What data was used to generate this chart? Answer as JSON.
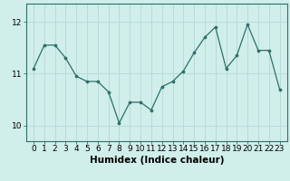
{
  "x": [
    0,
    1,
    2,
    3,
    4,
    5,
    6,
    7,
    8,
    9,
    10,
    11,
    12,
    13,
    14,
    15,
    16,
    17,
    18,
    19,
    20,
    21,
    22,
    23
  ],
  "y": [
    11.1,
    11.55,
    11.55,
    11.3,
    10.95,
    10.85,
    10.85,
    10.65,
    10.05,
    10.45,
    10.45,
    10.3,
    10.75,
    10.85,
    11.05,
    11.4,
    11.7,
    11.9,
    11.1,
    11.35,
    11.95,
    11.45,
    11.45,
    10.7
  ],
  "line_color": "#2d7068",
  "marker_color": "#2d7068",
  "bg_color": "#d0eeea",
  "grid_color": "#b8dcd8",
  "xlabel": "Humidex (Indice chaleur)",
  "ylim": [
    9.7,
    12.35
  ],
  "yticks": [
    10,
    11,
    12
  ],
  "xticks": [
    0,
    1,
    2,
    3,
    4,
    5,
    6,
    7,
    8,
    9,
    10,
    11,
    12,
    13,
    14,
    15,
    16,
    17,
    18,
    19,
    20,
    21,
    22,
    23
  ],
  "tick_fontsize": 6.5,
  "label_fontsize": 7.5
}
